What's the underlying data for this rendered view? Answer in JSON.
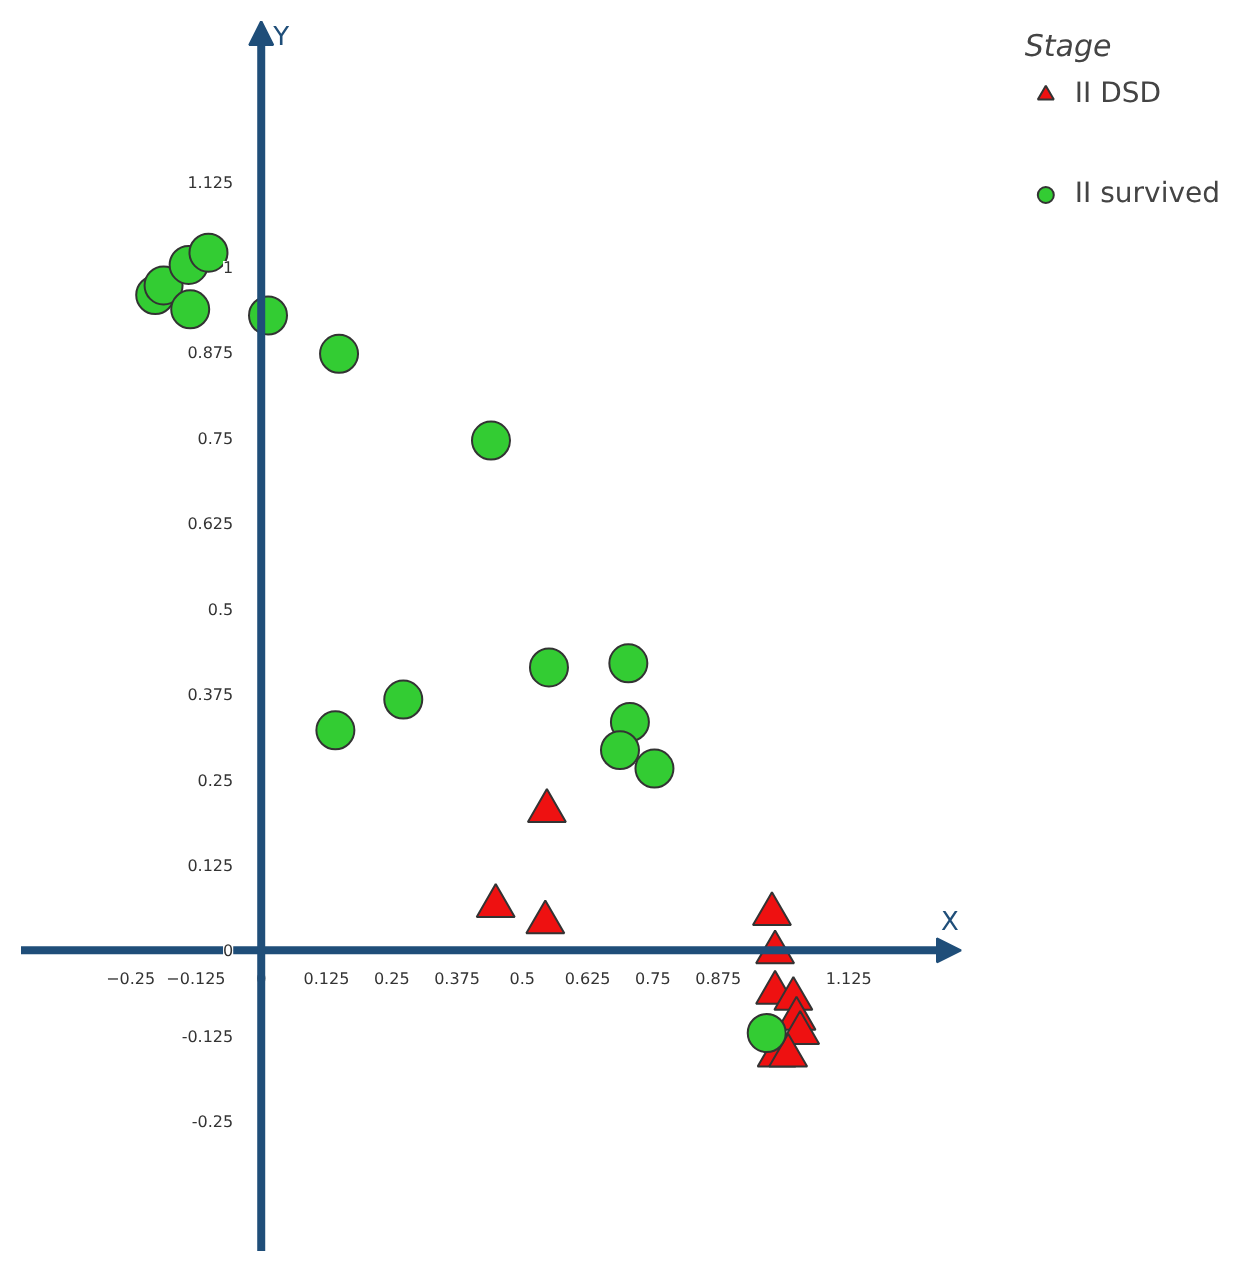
{
  "chart_data": {
    "type": "scatter",
    "xlabel": "X",
    "ylabel": "Y",
    "legend_title": "Stage",
    "legend": "right",
    "grid": false,
    "xlim": [
      -0.46,
      1.34
    ],
    "ylim": [
      -0.44,
      1.36
    ],
    "xticks": [
      -0.25,
      -0.125,
      0,
      0.125,
      0.25,
      0.375,
      0.5,
      0.625,
      0.75,
      0.875,
      1.125
    ],
    "yticks": [
      -0.25,
      -0.125,
      0,
      0.125,
      0.25,
      0.375,
      0.5,
      0.625,
      0.75,
      0.875,
      1,
      1.125
    ],
    "series": [
      {
        "name": "II DSD",
        "color": "#ee1111",
        "marker": "triangle",
        "x": [
          0.547,
          0.449,
          0.544,
          0.978,
          0.984,
          0.984,
          1.019,
          1.025,
          1.032,
          0.987,
          1.009
        ],
        "values": [
          0.204,
          0.065,
          0.041,
          0.053,
          -0.003,
          -0.062,
          -0.071,
          -0.1,
          -0.121,
          -0.154,
          -0.154
        ]
      },
      {
        "name": "II survived",
        "color": "#33cc33",
        "marker": "circle",
        "x": [
          -0.203,
          -0.187,
          -0.139,
          -0.101,
          -0.136,
          0.013,
          0.149,
          0.44,
          0.142,
          0.272,
          0.551,
          0.703,
          0.706,
          0.687,
          0.753,
          0.968
        ],
        "values": [
          0.959,
          0.973,
          1.003,
          1.021,
          0.938,
          0.929,
          0.873,
          0.746,
          0.322,
          0.367,
          0.414,
          0.42,
          0.334,
          0.293,
          0.266,
          -0.121
        ]
      }
    ]
  }
}
